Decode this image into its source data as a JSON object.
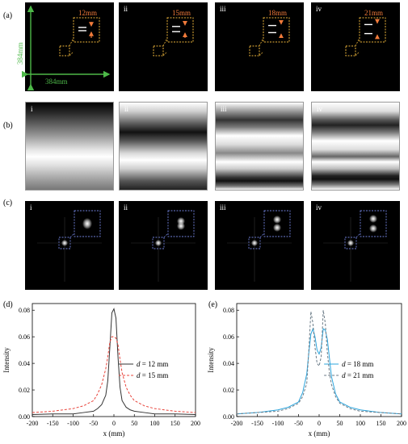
{
  "row_labels": {
    "a": "(a)",
    "b": "(b)",
    "c": "(c)",
    "d": "(d)",
    "e": "(e)"
  },
  "row_a": {
    "dimension_vertical": "384mm",
    "dimension_horizontal": "384mm",
    "panels": [
      {
        "roman": "i",
        "spacing": "12mm"
      },
      {
        "roman": "ii",
        "spacing": "15mm"
      },
      {
        "roman": "iii",
        "spacing": "18mm"
      },
      {
        "roman": "iv",
        "spacing": "21mm"
      }
    ],
    "colors": {
      "dim_arrow": "#4db848",
      "box": "#e8b23a",
      "label": "#f07a3a"
    }
  },
  "row_b": {
    "panels": [
      {
        "roman": "i"
      },
      {
        "roman": "ii"
      },
      {
        "roman": "iii"
      },
      {
        "roman": "iv"
      }
    ]
  },
  "row_c": {
    "panels": [
      {
        "roman": "i"
      },
      {
        "roman": "ii"
      },
      {
        "roman": "iii"
      },
      {
        "roman": "iv"
      }
    ],
    "box_color": "#6f7fd8"
  },
  "chart_data": [
    {
      "type": "line",
      "panel": "(d)",
      "xlabel": "x (mm)",
      "ylabel": "Intensity",
      "xlim": [
        -200,
        200
      ],
      "ylim": [
        0,
        0.085
      ],
      "xticks": [
        "-200",
        "-150",
        "-100",
        "-50",
        "0",
        "50",
        "100",
        "150",
        "200"
      ],
      "yticks": [
        "0.00",
        "0.02",
        "0.04",
        "0.06",
        "0.08"
      ],
      "legend": "right",
      "series": [
        {
          "name": "d = 12 mm",
          "legend_var": "d",
          "legend_rest": " = 12 mm",
          "color": "#333333",
          "style": "solid",
          "x": [
            -200,
            -150,
            -100,
            -75,
            -50,
            -40,
            -30,
            -20,
            -15,
            -10,
            -5,
            0,
            5,
            10,
            15,
            20,
            30,
            40,
            50,
            75,
            100,
            150,
            200
          ],
          "y": [
            0.0015,
            0.002,
            0.002,
            0.003,
            0.004,
            0.006,
            0.009,
            0.016,
            0.027,
            0.052,
            0.078,
            0.081,
            0.074,
            0.045,
            0.022,
            0.012,
            0.007,
            0.005,
            0.004,
            0.003,
            0.002,
            0.002,
            0.0015
          ]
        },
        {
          "name": "d = 15 mm",
          "legend_var": "d",
          "legend_rest": " = 15 mm",
          "color": "#e8433a",
          "style": "dashed",
          "x": [
            -200,
            -150,
            -100,
            -75,
            -50,
            -40,
            -30,
            -20,
            -15,
            -10,
            -5,
            0,
            5,
            10,
            15,
            20,
            30,
            40,
            50,
            75,
            100,
            150,
            200
          ],
          "y": [
            0.003,
            0.004,
            0.006,
            0.008,
            0.012,
            0.017,
            0.024,
            0.036,
            0.045,
            0.056,
            0.06,
            0.06,
            0.059,
            0.054,
            0.043,
            0.033,
            0.022,
            0.016,
            0.012,
            0.008,
            0.006,
            0.004,
            0.003
          ]
        }
      ]
    },
    {
      "type": "line",
      "panel": "(e)",
      "xlabel": "x (mm)",
      "ylabel": "Intensity",
      "xlim": [
        -200,
        200
      ],
      "ylim": [
        0,
        0.085
      ],
      "xticks": [
        "-200",
        "-150",
        "-100",
        "-50",
        "0",
        "50",
        "100",
        "150",
        "200"
      ],
      "yticks": [
        "0.00",
        "0.02",
        "0.04",
        "0.06",
        "0.08"
      ],
      "legend": "right",
      "series": [
        {
          "name": "d = 18 mm",
          "legend_var": "d",
          "legend_rest": " = 18 mm",
          "color": "#2ba4dc",
          "style": "solid",
          "x": [
            -200,
            -150,
            -100,
            -75,
            -50,
            -40,
            -30,
            -25,
            -20,
            -15,
            -10,
            -5,
            0,
            5,
            10,
            15,
            20,
            25,
            30,
            40,
            50,
            75,
            100,
            150,
            200
          ],
          "y": [
            0.002,
            0.003,
            0.005,
            0.007,
            0.011,
            0.018,
            0.032,
            0.048,
            0.062,
            0.066,
            0.06,
            0.05,
            0.047,
            0.052,
            0.066,
            0.065,
            0.058,
            0.044,
            0.03,
            0.017,
            0.011,
            0.007,
            0.005,
            0.003,
            0.002
          ]
        },
        {
          "name": "d = 21 mm",
          "legend_var": "d",
          "legend_rest": " = 21 mm",
          "color": "#6a7a86",
          "style": "dashed",
          "x": [
            -200,
            -150,
            -100,
            -75,
            -50,
            -40,
            -30,
            -25,
            -20,
            -15,
            -10,
            -5,
            0,
            5,
            10,
            15,
            20,
            25,
            30,
            40,
            50,
            75,
            100,
            150,
            200
          ],
          "y": [
            0.002,
            0.003,
            0.004,
            0.006,
            0.01,
            0.015,
            0.025,
            0.05,
            0.079,
            0.07,
            0.052,
            0.04,
            0.038,
            0.045,
            0.08,
            0.07,
            0.048,
            0.033,
            0.024,
            0.015,
            0.01,
            0.006,
            0.004,
            0.003,
            0.002
          ]
        }
      ]
    }
  ]
}
